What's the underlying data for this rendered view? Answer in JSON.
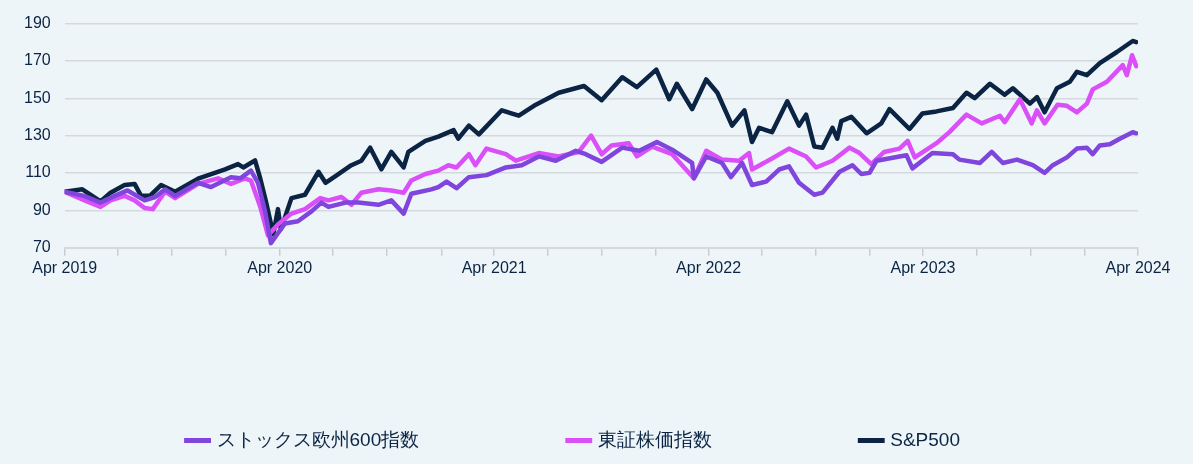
{
  "chart_data": {
    "type": "line",
    "xlim": [
      "2019-04-01",
      "2024-04-01"
    ],
    "xticks": [
      {
        "value": "2019-04-01",
        "label": "Apr 2019"
      },
      {
        "value": "2019-07-01",
        "label": null
      },
      {
        "value": "2019-10-01",
        "label": null
      },
      {
        "value": "2020-01-01",
        "label": null
      },
      {
        "value": "2020-04-01",
        "label": "Apr 2020"
      },
      {
        "value": "2020-07-01",
        "label": null
      },
      {
        "value": "2020-10-01",
        "label": null
      },
      {
        "value": "2021-01-01",
        "label": null
      },
      {
        "value": "2021-04-01",
        "label": "Apr 2021"
      },
      {
        "value": "2021-07-01",
        "label": null
      },
      {
        "value": "2021-10-01",
        "label": null
      },
      {
        "value": "2022-01-01",
        "label": null
      },
      {
        "value": "2022-04-01",
        "label": "Apr 2022"
      },
      {
        "value": "2022-07-01",
        "label": null
      },
      {
        "value": "2022-10-01",
        "label": null
      },
      {
        "value": "2023-01-01",
        "label": null
      },
      {
        "value": "2023-04-01",
        "label": "Apr 2023"
      },
      {
        "value": "2023-07-01",
        "label": null
      },
      {
        "value": "2023-10-01",
        "label": null
      },
      {
        "value": "2024-01-01",
        "label": null
      },
      {
        "value": "2024-04-01",
        "label": "Apr 2024"
      }
    ],
    "ylim": [
      70,
      190
    ],
    "yticks": [
      70,
      90,
      110,
      130,
      150,
      170,
      190
    ],
    "grid": "y",
    "legend": "bottom",
    "marker": "none",
    "line_style": "solid",
    "series": [
      {
        "name": "ストックス欧州600指数",
        "color": "#7f45dc",
        "x": [
          "2019-04-01",
          "2019-05-04",
          "2019-06-01",
          "2019-06-25",
          "2019-07-17",
          "2019-08-15",
          "2019-09-02",
          "2019-09-19",
          "2019-10-06",
          "2019-11-14",
          "2019-12-06",
          "2020-01-09",
          "2020-01-25",
          "2020-02-12",
          "2020-02-24",
          "2020-03-07",
          "2020-03-17",
          "2020-03-29",
          "2020-04-10",
          "2020-05-02",
          "2020-05-25",
          "2020-06-11",
          "2020-06-23",
          "2020-07-22",
          "2020-08-13",
          "2020-09-16",
          "2020-10-08",
          "2020-10-29",
          "2020-11-11",
          "2020-12-15",
          "2020-12-27",
          "2021-01-10",
          "2021-01-27",
          "2021-02-17",
          "2021-03-19",
          "2021-04-21",
          "2021-05-18",
          "2021-06-16",
          "2021-07-15",
          "2021-08-18",
          "2021-09-04",
          "2021-10-01",
          "2021-11-05",
          "2021-12-04",
          "2022-01-03",
          "2022-01-29",
          "2022-03-04",
          "2022-03-07",
          "2022-03-28",
          "2022-04-24",
          "2022-05-09",
          "2022-05-28",
          "2022-06-14",
          "2022-07-08",
          "2022-07-30",
          "2022-08-16",
          "2022-09-02",
          "2022-09-28",
          "2022-10-12",
          "2022-11-10",
          "2022-12-02",
          "2022-12-17",
          "2022-12-31",
          "2023-01-12",
          "2023-02-20",
          "2023-03-04",
          "2023-03-14",
          "2023-04-17",
          "2023-05-22",
          "2023-06-02",
          "2023-07-07",
          "2023-07-27",
          "2023-08-15",
          "2023-09-08",
          "2023-10-05",
          "2023-10-25",
          "2023-11-08",
          "2023-12-02",
          "2023-12-19",
          "2024-01-05",
          "2024-01-15",
          "2024-01-27",
          "2024-02-13",
          "2024-03-01",
          "2024-03-23",
          "2024-03-29"
        ],
        "values": [
          100,
          97.8,
          94.2,
          97.8,
          100.7,
          95.4,
          97.2,
          101.3,
          97.8,
          104.8,
          102.5,
          107.8,
          107.2,
          111.3,
          104.8,
          89.5,
          72.5,
          77.8,
          83,
          84.2,
          89.5,
          94.2,
          91.9,
          94.2,
          94.2,
          93,
          95.4,
          88.3,
          98.9,
          101.3,
          102.5,
          105.4,
          101.9,
          107.8,
          108.9,
          113,
          114.2,
          118.9,
          116.6,
          121.9,
          120.1,
          116,
          123.6,
          121.9,
          126.6,
          122.5,
          115.4,
          107.2,
          118.9,
          115.4,
          107.8,
          115.4,
          103.6,
          105.4,
          111.9,
          113.6,
          104.8,
          98.4,
          99.5,
          110.7,
          114.2,
          109.5,
          110.1,
          116.6,
          118.9,
          119.5,
          112.5,
          120.7,
          120.1,
          117.2,
          115.4,
          121.3,
          115.4,
          117.2,
          114.2,
          110.1,
          114.2,
          118.4,
          123.1,
          123.6,
          120.1,
          124.8,
          125.4,
          128.4,
          131.9,
          131.3
        ]
      },
      {
        "name": "東証株価指数",
        "color": "#da4ff7",
        "x": [
          "2019-04-01",
          "2019-05-09",
          "2019-06-01",
          "2019-06-18",
          "2019-07-12",
          "2019-07-29",
          "2019-08-15",
          "2019-08-29",
          "2019-09-19",
          "2019-10-06",
          "2019-11-14",
          "2019-12-18",
          "2020-01-09",
          "2020-02-02",
          "2020-02-12",
          "2020-02-28",
          "2020-03-12",
          "2020-03-29",
          "2020-04-21",
          "2020-05-14",
          "2020-06-09",
          "2020-06-23",
          "2020-07-15",
          "2020-08-01",
          "2020-08-18",
          "2020-09-16",
          "2020-10-08",
          "2020-10-29",
          "2020-11-11",
          "2020-12-05",
          "2020-12-27",
          "2021-01-13",
          "2021-01-27",
          "2021-02-17",
          "2021-02-28",
          "2021-03-19",
          "2021-04-21",
          "2021-05-08",
          "2021-06-16",
          "2021-07-20",
          "2021-08-23",
          "2021-09-13",
          "2021-10-01",
          "2021-10-18",
          "2021-11-16",
          "2021-11-30",
          "2021-12-26",
          "2022-01-29",
          "2022-03-07",
          "2022-03-28",
          "2022-04-24",
          "2022-05-23",
          "2022-06-09",
          "2022-06-14",
          "2022-07-18",
          "2022-08-16",
          "2022-09-14",
          "2022-10-01",
          "2022-10-29",
          "2022-11-27",
          "2022-12-14",
          "2023-01-03",
          "2023-01-25",
          "2023-02-20",
          "2023-03-06",
          "2023-03-18",
          "2023-04-24",
          "2023-05-16",
          "2023-06-14",
          "2023-07-10",
          "2023-08-10",
          "2023-08-18",
          "2023-09-13",
          "2023-10-03",
          "2023-10-12",
          "2023-10-25",
          "2023-11-16",
          "2023-12-02",
          "2023-12-19",
          "2024-01-05",
          "2024-01-15",
          "2024-02-08",
          "2024-03-06",
          "2024-03-13",
          "2024-03-22",
          "2024-03-29"
        ],
        "values": [
          100,
          94.8,
          91.9,
          95.4,
          97.8,
          95.4,
          91.3,
          90.7,
          100.1,
          96.6,
          104.2,
          107.2,
          104.2,
          107.2,
          106,
          91.9,
          76.6,
          82.5,
          88.3,
          90.7,
          96.6,
          95.4,
          97.2,
          93,
          99.5,
          101.3,
          100.7,
          99.5,
          106,
          109.5,
          111.3,
          114.2,
          113,
          120.1,
          114.2,
          123.1,
          120.1,
          116.6,
          120.7,
          118.9,
          121.3,
          130.1,
          120.1,
          124.8,
          126,
          118.9,
          124.2,
          120.1,
          107.2,
          121.9,
          117.2,
          116.6,
          120.7,
          111.9,
          117.8,
          123.1,
          118.9,
          113,
          116.6,
          123.6,
          120.7,
          114.8,
          121.3,
          123.1,
          127.2,
          118.4,
          126,
          131.9,
          141.3,
          136.6,
          140.7,
          137.2,
          149.5,
          136.6,
          143.6,
          136.6,
          146.6,
          146,
          142.5,
          147.2,
          154.8,
          158.9,
          167.8,
          162.4,
          173.1,
          167.2
        ]
      },
      {
        "name": "S&P500",
        "color": "#0b2444",
        "x": [
          "2019-04-01",
          "2019-05-01",
          "2019-06-01",
          "2019-06-18",
          "2019-07-12",
          "2019-07-29",
          "2019-08-09",
          "2019-08-24",
          "2019-09-12",
          "2019-10-06",
          "2019-11-14",
          "2019-12-30",
          "2020-01-21",
          "2020-01-30",
          "2020-02-19",
          "2020-02-28",
          "2020-03-09",
          "2020-03-21",
          "2020-03-29",
          "2020-04-03",
          "2020-04-21",
          "2020-05-14",
          "2020-06-06",
          "2020-06-18",
          "2020-07-05",
          "2020-08-01",
          "2020-08-18",
          "2020-09-02",
          "2020-09-21",
          "2020-10-08",
          "2020-10-29",
          "2020-11-06",
          "2020-12-05",
          "2020-12-27",
          "2021-01-22",
          "2021-01-30",
          "2021-02-17",
          "2021-03-06",
          "2021-04-14",
          "2021-05-13",
          "2021-06-11",
          "2021-07-20",
          "2021-09-01",
          "2021-10-01",
          "2021-11-05",
          "2021-11-30",
          "2022-01-02",
          "2022-01-24",
          "2022-02-06",
          "2022-03-04",
          "2022-03-28",
          "2022-04-16",
          "2022-05-11",
          "2022-06-01",
          "2022-06-14",
          "2022-06-26",
          "2022-07-18",
          "2022-08-13",
          "2022-09-02",
          "2022-09-14",
          "2022-09-28",
          "2022-10-12",
          "2022-10-29",
          "2022-11-06",
          "2022-11-13",
          "2022-11-30",
          "2022-12-26",
          "2023-01-20",
          "2023-02-03",
          "2023-03-09",
          "2023-03-31",
          "2023-04-24",
          "2023-05-22",
          "2023-06-14",
          "2023-06-28",
          "2023-07-24",
          "2023-08-18",
          "2023-09-01",
          "2023-09-30",
          "2023-10-12",
          "2023-10-25",
          "2023-11-15",
          "2023-12-07",
          "2023-12-19",
          "2024-01-05",
          "2024-01-27",
          "2024-02-25",
          "2024-03-23",
          "2024-03-29"
        ],
        "values": [
          100,
          101.3,
          94.8,
          99.5,
          103.6,
          104.2,
          97.8,
          97.8,
          103.6,
          100,
          107,
          112,
          114.8,
          113,
          116.8,
          107,
          94.2,
          77.2,
          90.7,
          80,
          96.6,
          98.4,
          110.7,
          104.8,
          108.4,
          114.2,
          116.6,
          123.6,
          112,
          121.3,
          113,
          121.3,
          127.2,
          129.5,
          133,
          128.4,
          135.4,
          130.7,
          143.6,
          140.7,
          146.6,
          153,
          156.6,
          149,
          161.3,
          156,
          165.4,
          149.5,
          157.8,
          144.2,
          160.1,
          153,
          135.4,
          143.6,
          126.6,
          134.2,
          131.9,
          148.4,
          135.4,
          141.3,
          124.2,
          123.6,
          134.2,
          128.4,
          137.8,
          140.1,
          131.3,
          136.6,
          144.2,
          133.6,
          141.9,
          143,
          144.8,
          153,
          150.1,
          157.8,
          151.9,
          155.4,
          147.2,
          150.7,
          142.5,
          155.4,
          158.9,
          164.2,
          162.4,
          168.9,
          174.8,
          180.7,
          180.1
        ]
      }
    ]
  }
}
